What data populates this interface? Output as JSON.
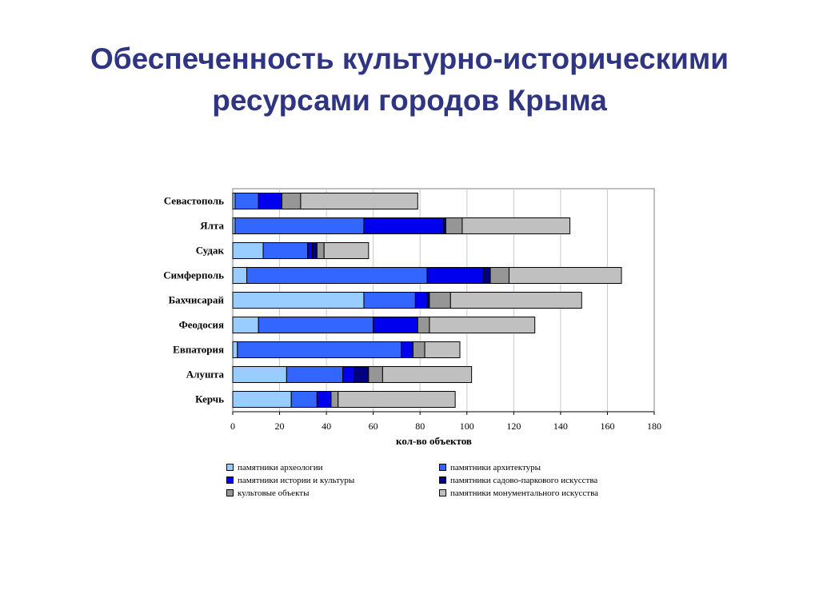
{
  "title_line1": "Обеспеченность культурно-историческими",
  "title_line2": "ресурсами городов Крыма",
  "chart_data": {
    "type": "bar",
    "orientation": "horizontal",
    "stacked": true,
    "xlabel": "кол-во объектов",
    "xlim": [
      0,
      180
    ],
    "xticks": [
      0,
      20,
      40,
      60,
      80,
      100,
      120,
      140,
      160,
      180
    ],
    "grid": "vertical",
    "legend_position": "bottom",
    "categories": [
      "Севастополь",
      "Ялта",
      "Судак",
      "Симферполь",
      "Бахчисарай",
      "Феодосия",
      "Евпатория",
      "Алушта",
      "Керчь"
    ],
    "series": [
      {
        "name": "памятники археологии",
        "color": "#99ccff",
        "values": [
          1,
          1,
          13,
          6,
          56,
          11,
          2,
          23,
          25
        ]
      },
      {
        "name": "памятники архитектуры",
        "color": "#3366ff",
        "values": [
          10,
          55,
          19,
          77,
          22,
          49,
          70,
          24,
          11
        ]
      },
      {
        "name": "памятники истории и культуры",
        "color": "#0000ee",
        "values": [
          10,
          34,
          2,
          24,
          5,
          19,
          5,
          5,
          6
        ]
      },
      {
        "name": "памятники садово-паркового искусства",
        "color": "#000080",
        "values": [
          0,
          1,
          2,
          3,
          1,
          0,
          0,
          6,
          0
        ]
      },
      {
        "name": "культовые объекты",
        "color": "#969696",
        "values": [
          8,
          7,
          3,
          8,
          9,
          5,
          5,
          6,
          3
        ]
      },
      {
        "name": "памятники монументального искусства",
        "color": "#c0c0c0",
        "values": [
          50,
          46,
          19,
          48,
          56,
          45,
          15,
          38,
          50
        ]
      }
    ]
  }
}
